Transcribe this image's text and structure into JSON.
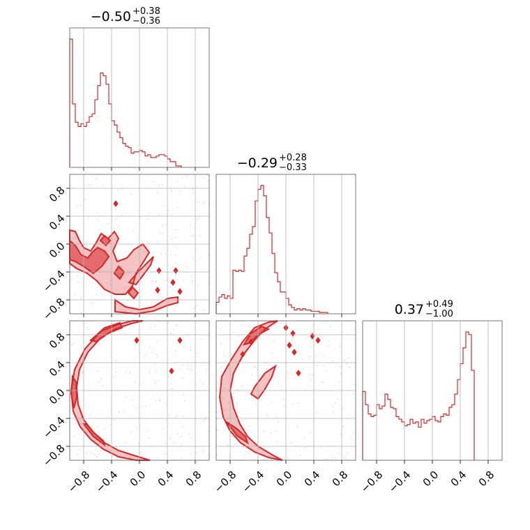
{
  "colors": {
    "series": "#d62728",
    "grid": "#b0b0b0",
    "frame": "#555555",
    "scatter": "#f5c2c7"
  },
  "chart_data": {
    "type": "corner",
    "parameters": 3,
    "axis_range": [
      -1.0,
      1.0
    ],
    "ticks": [
      -0.8,
      -0.4,
      0.0,
      0.4,
      0.8
    ],
    "tick_labels": [
      "−0.8",
      "−0.4",
      "0.0",
      "0.4",
      "0.8"
    ],
    "grid": true,
    "titles": [
      {
        "median": "−0.50",
        "plus": "+0.38",
        "minus": "−0.36"
      },
      {
        "median": "−0.29",
        "plus": "+0.28",
        "minus": "−0.33"
      },
      {
        "median": "0.37",
        "plus": "+0.49",
        "minus": "−1.00"
      }
    ],
    "histograms": [
      {
        "bin_start": -1.0,
        "bin_width": 0.04,
        "values": [
          0.91,
          0.45,
          0.32,
          0.29,
          0.31,
          0.29,
          0.32,
          0.36,
          0.38,
          0.48,
          0.58,
          0.67,
          0.65,
          0.59,
          0.45,
          0.33,
          0.3,
          0.25,
          0.21,
          0.17,
          0.15,
          0.14,
          0.1,
          0.11,
          0.11,
          0.12,
          0.11,
          0.08,
          0.09,
          0.07,
          0.07,
          0.08,
          0.09,
          0.09,
          0.08,
          0.06,
          0.04,
          0.04,
          0.01,
          0.01
        ]
      },
      {
        "bin_start": -1.0,
        "bin_width": 0.04,
        "values": [
          0.09,
          0.13,
          0.15,
          0.12,
          0.14,
          0.12,
          0.34,
          0.33,
          0.34,
          0.33,
          0.45,
          0.51,
          0.62,
          0.68,
          0.88,
          0.97,
          1.0,
          0.92,
          0.75,
          0.63,
          0.47,
          0.32,
          0.25,
          0.17,
          0.17,
          0.12,
          0.07,
          0.05,
          0.03,
          0.04,
          0.03,
          0.04,
          0.03,
          0.03,
          0.02,
          0.02,
          0.02,
          0.01,
          0.01,
          0.01
        ]
      },
      {
        "bin_start": -1.0,
        "bin_width": 0.04,
        "values": [
          0.52,
          0.42,
          0.35,
          0.33,
          0.34,
          0.42,
          0.39,
          0.41,
          0.5,
          0.46,
          0.4,
          0.39,
          0.33,
          0.31,
          0.29,
          0.26,
          0.27,
          0.31,
          0.28,
          0.29,
          0.25,
          0.31,
          0.28,
          0.3,
          0.31,
          0.33,
          0.3,
          0.29,
          0.33,
          0.35,
          0.34,
          0.4,
          0.42,
          0.5,
          0.61,
          0.73,
          0.85,
          0.97,
          0.95,
          0.68
        ]
      }
    ],
    "panel_2d": [
      {
        "row": 1,
        "col": 0,
        "contours_outer": [
          [
            [
              -1.0,
              0.2
            ],
            [
              -0.92,
              0.18
            ],
            [
              -0.86,
              0.05
            ],
            [
              -0.8,
              -0.05
            ],
            [
              -0.7,
              -0.1
            ],
            [
              -0.62,
              0.02
            ],
            [
              -0.55,
              0.15
            ],
            [
              -0.45,
              0.08
            ],
            [
              -0.36,
              0.18
            ],
            [
              -0.3,
              0.08
            ],
            [
              -0.38,
              -0.1
            ],
            [
              -0.32,
              -0.25
            ],
            [
              -0.18,
              -0.2
            ],
            [
              -0.08,
              -0.08
            ],
            [
              0.05,
              0.0
            ],
            [
              0.14,
              -0.12
            ],
            [
              0.06,
              -0.25
            ],
            [
              -0.05,
              -0.42
            ],
            [
              -0.1,
              -0.6
            ],
            [
              -0.2,
              -0.72
            ],
            [
              -0.35,
              -0.72
            ],
            [
              -0.5,
              -0.65
            ],
            [
              -0.62,
              -0.52
            ],
            [
              -0.75,
              -0.42
            ],
            [
              -0.9,
              -0.35
            ],
            [
              -1.0,
              -0.28
            ]
          ],
          [
            [
              -0.35,
              -0.8
            ],
            [
              -0.2,
              -0.9
            ],
            [
              0.0,
              -0.94
            ],
            [
              0.2,
              -0.9
            ],
            [
              0.4,
              -0.78
            ],
            [
              0.55,
              -0.76
            ],
            [
              0.55,
              -0.84
            ],
            [
              0.4,
              -0.88
            ],
            [
              0.2,
              -0.96
            ],
            [
              -0.05,
              -1.0
            ],
            [
              -0.35,
              -0.97
            ]
          ],
          [
            [
              -0.15,
              -0.55
            ],
            [
              -0.02,
              -0.4
            ],
            [
              0.1,
              -0.28
            ],
            [
              0.2,
              -0.18
            ],
            [
              0.16,
              -0.3
            ],
            [
              0.05,
              -0.45
            ],
            [
              -0.05,
              -0.58
            ]
          ]
        ],
        "contours_inner": [
          [
            [
              -1.0,
              0.05
            ],
            [
              -0.92,
              -0.02
            ],
            [
              -0.84,
              -0.15
            ],
            [
              -0.74,
              -0.2
            ],
            [
              -0.68,
              -0.12
            ],
            [
              -0.6,
              -0.05
            ],
            [
              -0.5,
              -0.1
            ],
            [
              -0.44,
              -0.18
            ],
            [
              -0.54,
              -0.32
            ],
            [
              -0.66,
              -0.42
            ],
            [
              -0.8,
              -0.32
            ],
            [
              -0.92,
              -0.25
            ],
            [
              -1.0,
              -0.22
            ]
          ],
          [
            [
              -0.5,
              0.12
            ],
            [
              -0.42,
              0.05
            ],
            [
              -0.48,
              -0.02
            ],
            [
              -0.56,
              0.05
            ]
          ],
          [
            [
              -0.3,
              -0.32
            ],
            [
              -0.22,
              -0.4
            ],
            [
              -0.28,
              -0.5
            ],
            [
              -0.36,
              -0.42
            ]
          ],
          [
            [
              -0.1,
              -0.62
            ],
            [
              -0.02,
              -0.7
            ],
            [
              -0.08,
              -0.78
            ],
            [
              -0.16,
              -0.7
            ]
          ]
        ],
        "islands": [
          [
            -0.34,
            0.58
          ],
          [
            0.28,
            -0.38
          ],
          [
            0.52,
            -0.38
          ],
          [
            0.48,
            -0.55
          ],
          [
            0.26,
            -0.66
          ],
          [
            0.58,
            -0.68
          ]
        ]
      },
      {
        "row": 2,
        "col": 0,
        "contours_outer": [
          [
            [
              -0.1,
              1.0
            ],
            [
              -0.3,
              0.95
            ],
            [
              -0.55,
              0.85
            ],
            [
              -0.78,
              0.6
            ],
            [
              -0.93,
              0.3
            ],
            [
              -0.98,
              0.0
            ],
            [
              -0.95,
              -0.3
            ],
            [
              -0.85,
              -0.52
            ],
            [
              -0.7,
              -0.7
            ],
            [
              -0.52,
              -0.84
            ],
            [
              -0.3,
              -0.95
            ],
            [
              -0.05,
              -1.0
            ],
            [
              0.15,
              -1.0
            ],
            [
              -0.05,
              -0.94
            ],
            [
              -0.3,
              -0.86
            ],
            [
              -0.5,
              -0.75
            ],
            [
              -0.66,
              -0.6
            ],
            [
              -0.8,
              -0.42
            ],
            [
              -0.88,
              -0.2
            ],
            [
              -0.9,
              0.05
            ],
            [
              -0.86,
              0.3
            ],
            [
              -0.74,
              0.55
            ],
            [
              -0.56,
              0.75
            ],
            [
              -0.35,
              0.88
            ],
            [
              -0.12,
              0.96
            ],
            [
              0.05,
              1.0
            ]
          ]
        ],
        "contours_inner": [
          [
            [
              -0.28,
              0.97
            ],
            [
              -0.5,
              0.9
            ],
            [
              -0.7,
              0.72
            ],
            [
              -0.62,
              0.7
            ],
            [
              -0.45,
              0.82
            ],
            [
              -0.25,
              0.9
            ]
          ],
          [
            [
              -0.96,
              0.2
            ],
            [
              -0.98,
              -0.05
            ],
            [
              -0.94,
              -0.25
            ],
            [
              -0.9,
              -0.1
            ],
            [
              -0.91,
              0.12
            ]
          ],
          [
            [
              -0.8,
              -0.48
            ],
            [
              -0.66,
              -0.66
            ],
            [
              -0.5,
              -0.78
            ],
            [
              -0.52,
              -0.72
            ],
            [
              -0.66,
              -0.6
            ],
            [
              -0.76,
              -0.48
            ]
          ]
        ],
        "islands": [
          [
            -0.04,
            0.72
          ],
          [
            0.58,
            0.72
          ],
          [
            0.46,
            0.28
          ]
        ]
      },
      {
        "row": 2,
        "col": 1,
        "contours_outer": [
          [
            [
              -0.25,
              0.98
            ],
            [
              -0.45,
              0.9
            ],
            [
              -0.62,
              0.7
            ],
            [
              -0.78,
              0.45
            ],
            [
              -0.92,
              0.2
            ],
            [
              -0.95,
              -0.1
            ],
            [
              -0.9,
              -0.38
            ],
            [
              -0.8,
              -0.58
            ],
            [
              -0.65,
              -0.75
            ],
            [
              -0.45,
              -0.88
            ],
            [
              -0.25,
              -0.96
            ],
            [
              -0.05,
              -1.0
            ],
            [
              -0.2,
              -0.92
            ],
            [
              -0.4,
              -0.8
            ],
            [
              -0.55,
              -0.66
            ],
            [
              -0.66,
              -0.48
            ],
            [
              -0.75,
              -0.25
            ],
            [
              -0.8,
              0.0
            ],
            [
              -0.75,
              0.25
            ],
            [
              -0.62,
              0.5
            ],
            [
              -0.45,
              0.72
            ],
            [
              -0.3,
              0.88
            ],
            [
              -0.12,
              1.0
            ]
          ],
          [
            [
              -0.45,
              0.05
            ],
            [
              -0.3,
              0.25
            ],
            [
              -0.15,
              0.35
            ],
            [
              -0.2,
              0.2
            ],
            [
              -0.3,
              0.02
            ],
            [
              -0.4,
              -0.12
            ],
            [
              -0.5,
              -0.05
            ]
          ]
        ],
        "contours_inner": [
          [
            [
              -0.35,
              0.92
            ],
            [
              -0.5,
              0.82
            ],
            [
              -0.6,
              0.66
            ],
            [
              -0.52,
              0.68
            ],
            [
              -0.4,
              0.8
            ],
            [
              -0.25,
              0.88
            ]
          ],
          [
            [
              -0.85,
              -0.45
            ],
            [
              -0.7,
              -0.65
            ],
            [
              -0.55,
              -0.75
            ],
            [
              -0.58,
              -0.66
            ],
            [
              -0.7,
              -0.55
            ]
          ]
        ],
        "islands": [
          [
            0.0,
            0.9
          ],
          [
            0.1,
            0.82
          ],
          [
            0.05,
            0.65
          ],
          [
            0.38,
            0.78
          ],
          [
            0.46,
            0.72
          ],
          [
            0.12,
            0.55
          ],
          [
            0.18,
            0.25
          ],
          [
            -0.5,
            0.7
          ],
          [
            -0.62,
            0.52
          ]
        ]
      }
    ]
  }
}
